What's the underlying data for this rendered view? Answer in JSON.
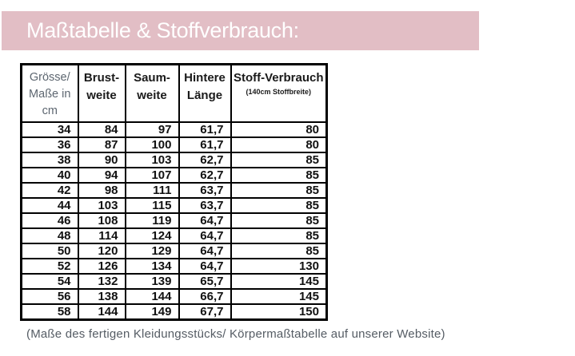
{
  "header": {
    "title": "Maßtabelle & Stoffverbrauch:",
    "bar_color": "#e2bec5"
  },
  "table": {
    "columns": [
      {
        "label": "Grösse/\nMaße in\ncm",
        "sub": ""
      },
      {
        "label": "Brust-\nweite",
        "sub": ""
      },
      {
        "label": "Saum-\nweite",
        "sub": ""
      },
      {
        "label": "Hintere\nLänge",
        "sub": ""
      },
      {
        "label": "Stoff-Verbrauch",
        "sub": "(140cm Stoffbreite)"
      }
    ],
    "rows": [
      [
        "34",
        "84",
        "97",
        "61,7",
        "80"
      ],
      [
        "36",
        "87",
        "100",
        "61,7",
        "80"
      ],
      [
        "38",
        "90",
        "103",
        "62,7",
        "85"
      ],
      [
        "40",
        "94",
        "107",
        "62,7",
        "85"
      ],
      [
        "42",
        "98",
        "111",
        "63,7",
        "85"
      ],
      [
        "44",
        "103",
        "115",
        "63,7",
        "85"
      ],
      [
        "46",
        "108",
        "119",
        "64,7",
        "85"
      ],
      [
        "48",
        "114",
        "124",
        "64,7",
        "85"
      ],
      [
        "50",
        "120",
        "129",
        "64,7",
        "85"
      ],
      [
        "52",
        "126",
        "134",
        "64,7",
        "130"
      ],
      [
        "54",
        "132",
        "139",
        "65,7",
        "145"
      ],
      [
        "56",
        "138",
        "144",
        "66,7",
        "145"
      ],
      [
        "58",
        "144",
        "149",
        "67,7",
        "150"
      ]
    ]
  },
  "footer": {
    "note": "(Maße des fertigen Kleidungsstücks/ Körpermaßtabelle auf unserer Website)"
  }
}
